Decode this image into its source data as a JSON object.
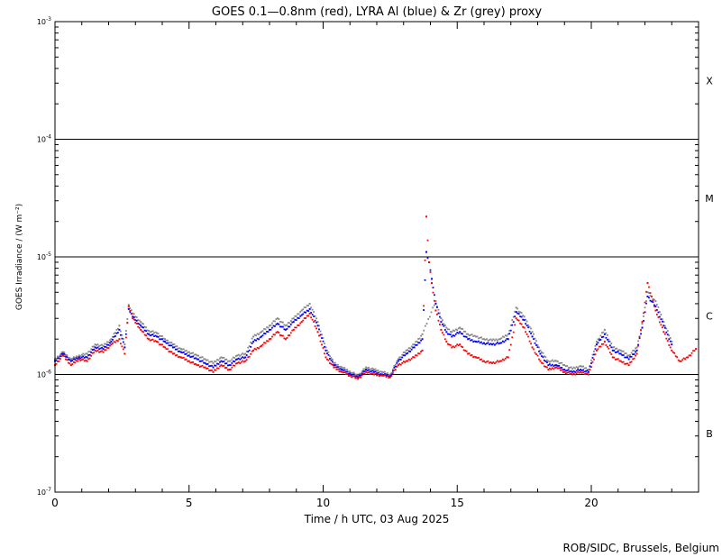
{
  "chart_data": {
    "type": "scatter",
    "title": "GOES 0.1—0.8nm (red), LYRA Al (blue) & Zr (grey) proxy",
    "xlabel": "Time / h UTC, 03 Aug 2025",
    "ylabel": "GOES Irradiance / (W m⁻²)",
    "xlim": [
      0,
      24
    ],
    "ylim": [
      1e-07,
      0.001
    ],
    "yscale": "log",
    "x_ticks": [
      {
        "value": 0,
        "label": "0"
      },
      {
        "value": 5,
        "label": "5"
      },
      {
        "value": 10,
        "label": "10"
      },
      {
        "value": 15,
        "label": "15"
      },
      {
        "value": 20,
        "label": "20"
      }
    ],
    "y_ticks": [
      {
        "exp": -7,
        "label_base": "10",
        "label_exp": "-7"
      },
      {
        "exp": -6,
        "label_base": "10",
        "label_exp": "-6"
      },
      {
        "exp": -5,
        "label_base": "10",
        "label_exp": "-5"
      },
      {
        "exp": -4,
        "label_base": "10",
        "label_exp": "-4"
      },
      {
        "exp": -3,
        "label_base": "10",
        "label_exp": "-3"
      }
    ],
    "flare_class_lines": [
      1e-06,
      1e-05,
      0.0001
    ],
    "flare_classes": [
      {
        "label": "B",
        "center_exp": -6.5
      },
      {
        "label": "C",
        "center_exp": -5.5
      },
      {
        "label": "M",
        "center_exp": -4.5
      },
      {
        "label": "X",
        "center_exp": -3.5
      }
    ],
    "series": [
      {
        "color": "#ff0000",
        "x": [
          0.0,
          0.3,
          0.6,
          0.9,
          1.2,
          1.5,
          1.8,
          2.1,
          2.4,
          2.6,
          2.75,
          2.9,
          3.2,
          3.5,
          3.8,
          4.1,
          4.4,
          4.7,
          5.0,
          5.3,
          5.6,
          5.9,
          6.2,
          6.5,
          6.8,
          7.1,
          7.4,
          7.7,
          8.0,
          8.3,
          8.6,
          8.9,
          9.2,
          9.5,
          9.8,
          10.1,
          10.4,
          10.7,
          11.0,
          11.3,
          11.6,
          11.9,
          12.2,
          12.5,
          12.8,
          13.1,
          13.4,
          13.7,
          13.85,
          13.95,
          14.05,
          14.2,
          14.4,
          14.6,
          14.8,
          15.1,
          15.4,
          15.7,
          16.0,
          16.3,
          16.6,
          16.9,
          17.2,
          17.5,
          17.8,
          18.1,
          18.4,
          18.7,
          19.0,
          19.3,
          19.6,
          19.9,
          20.2,
          20.5,
          20.8,
          21.1,
          21.4,
          21.7,
          21.9,
          22.1,
          22.4,
          22.7,
          23.0,
          23.3,
          23.6,
          23.9
        ],
        "y": [
          1.2e-06,
          1.45e-06,
          1.2e-06,
          1.35e-06,
          1.3e-06,
          1.6e-06,
          1.55e-06,
          1.8e-06,
          2e-06,
          1.5e-06,
          3.8e-06,
          3e-06,
          2.4e-06,
          2e-06,
          1.9e-06,
          1.7e-06,
          1.5e-06,
          1.4e-06,
          1.3e-06,
          1.2e-06,
          1.15e-06,
          1.05e-06,
          1.2e-06,
          1.1e-06,
          1.25e-06,
          1.3e-06,
          1.6e-06,
          1.75e-06,
          2e-06,
          2.3e-06,
          2e-06,
          2.4e-06,
          2.8e-06,
          3.3e-06,
          2.3e-06,
          1.4e-06,
          1.15e-06,
          1.05e-06,
          9.8e-07,
          9.2e-07,
          1.05e-06,
          1e-06,
          9.8e-07,
          9.5e-07,
          1.2e-06,
          1.3e-06,
          1.4e-06,
          1.6e-06,
          2.2e-05,
          9e-06,
          6e-06,
          3.5e-06,
          2.4e-06,
          1.9e-06,
          1.7e-06,
          1.8e-06,
          1.5e-06,
          1.4e-06,
          1.3e-06,
          1.25e-06,
          1.3e-06,
          1.4e-06,
          3e-06,
          2.5e-06,
          1.7e-06,
          1.3e-06,
          1.1e-06,
          1.15e-06,
          1.05e-06,
          1e-06,
          1.05e-06,
          1e-06,
          1.6e-06,
          1.9e-06,
          1.4e-06,
          1.3e-06,
          1.2e-06,
          1.5e-06,
          2.8e-06,
          6e-06,
          3.5e-06,
          2.3e-06,
          1.6e-06,
          1.3e-06,
          1.4e-06,
          1.65e-06
        ]
      },
      {
        "color": "#0000ff",
        "x": [
          0.0,
          0.3,
          0.6,
          0.9,
          1.2,
          1.5,
          1.8,
          2.1,
          2.4,
          2.6,
          2.75,
          2.9,
          3.2,
          3.5,
          3.8,
          4.1,
          4.4,
          4.7,
          5.0,
          5.3,
          5.6,
          5.9,
          6.2,
          6.5,
          6.8,
          7.1,
          7.4,
          7.7,
          8.0,
          8.3,
          8.6,
          8.9,
          9.2,
          9.5,
          9.8,
          10.1,
          10.4,
          10.7,
          11.0,
          11.3,
          11.6,
          11.9,
          12.2,
          12.5,
          12.8,
          13.1,
          13.4,
          13.7,
          13.85,
          13.95,
          14.05,
          14.2,
          14.4,
          14.6,
          14.8,
          15.1,
          15.4,
          15.7,
          16.0,
          16.3,
          16.6,
          16.9,
          17.2,
          17.5,
          17.8,
          18.1,
          18.4,
          18.7,
          19.0,
          19.3,
          19.6,
          19.9,
          20.2,
          20.5,
          20.8,
          21.1,
          21.4,
          21.7,
          21.9,
          22.1,
          22.4,
          22.7,
          23.0
        ],
        "y": [
          1.3e-06,
          1.5e-06,
          1.3e-06,
          1.4e-06,
          1.4e-06,
          1.7e-06,
          1.65e-06,
          1.9e-06,
          2.4e-06,
          1.7e-06,
          3.6e-06,
          3.1e-06,
          2.6e-06,
          2.2e-06,
          2.1e-06,
          1.9e-06,
          1.7e-06,
          1.55e-06,
          1.45e-06,
          1.35e-06,
          1.25e-06,
          1.15e-06,
          1.3e-06,
          1.2e-06,
          1.35e-06,
          1.4e-06,
          1.9e-06,
          2.1e-06,
          2.4e-06,
          2.7e-06,
          2.4e-06,
          2.8e-06,
          3.2e-06,
          3.6e-06,
          2.6e-06,
          1.6e-06,
          1.2e-06,
          1.1e-06,
          1.02e-06,
          9.5e-07,
          1.1e-06,
          1.05e-06,
          1e-06,
          9.7e-07,
          1.3e-06,
          1.5e-06,
          1.7e-06,
          2e-06,
          1.1e-05,
          9e-06,
          6.5e-06,
          4e-06,
          2.8e-06,
          2.3e-06,
          2.1e-06,
          2.3e-06,
          2e-06,
          1.9e-06,
          1.85e-06,
          1.8e-06,
          1.85e-06,
          2e-06,
          3.4e-06,
          2.9e-06,
          2.1e-06,
          1.5e-06,
          1.2e-06,
          1.2e-06,
          1.1e-06,
          1.05e-06,
          1.1e-06,
          1.05e-06,
          1.8e-06,
          2.2e-06,
          1.6e-06,
          1.5e-06,
          1.35e-06,
          1.6e-06,
          2.5e-06,
          4.6e-06,
          3.8e-06,
          2.6e-06,
          1.8e-06
        ]
      },
      {
        "color": "#888888",
        "x": [
          0.0,
          0.3,
          0.6,
          0.9,
          1.2,
          1.5,
          1.8,
          2.1,
          2.4,
          2.6,
          2.75,
          2.9,
          3.2,
          3.5,
          3.8,
          4.1,
          4.4,
          4.7,
          5.0,
          5.3,
          5.6,
          5.9,
          6.2,
          6.5,
          6.8,
          7.1,
          7.4,
          7.7,
          8.0,
          8.3,
          8.6,
          8.9,
          9.2,
          9.5,
          9.8,
          10.1,
          10.4,
          10.7,
          11.0,
          11.3,
          11.6,
          11.9,
          12.2,
          12.5,
          12.8,
          13.1,
          13.4,
          13.7,
          14.2,
          14.4,
          14.6,
          14.8,
          15.1,
          15.4,
          15.7,
          16.0,
          16.3,
          16.6,
          16.9,
          17.2,
          17.5,
          17.8,
          18.1,
          18.4,
          18.7,
          19.0,
          19.3,
          19.6,
          19.9,
          20.2,
          20.5,
          20.8,
          21.1,
          21.4,
          21.7,
          21.9,
          22.1,
          22.4,
          22.7,
          23.0
        ],
        "y": [
          1.35e-06,
          1.55e-06,
          1.35e-06,
          1.45e-06,
          1.5e-06,
          1.8e-06,
          1.75e-06,
          2e-06,
          2.6e-06,
          1.8e-06,
          3.9e-06,
          3.3e-06,
          2.8e-06,
          2.35e-06,
          2.25e-06,
          2e-06,
          1.8e-06,
          1.65e-06,
          1.55e-06,
          1.45e-06,
          1.35e-06,
          1.25e-06,
          1.4e-06,
          1.3e-06,
          1.45e-06,
          1.5e-06,
          2.1e-06,
          2.3e-06,
          2.6e-06,
          3e-06,
          2.6e-06,
          3e-06,
          3.5e-06,
          4e-06,
          2.8e-06,
          1.7e-06,
          1.25e-06,
          1.15e-06,
          1.06e-06,
          9.8e-07,
          1.15e-06,
          1.1e-06,
          1.05e-06,
          1e-06,
          1.35e-06,
          1.6e-06,
          1.8e-06,
          2.2e-06,
          4.2e-06,
          3e-06,
          2.5e-06,
          2.3e-06,
          2.5e-06,
          2.2e-06,
          2.1e-06,
          2e-06,
          1.95e-06,
          2e-06,
          2.2e-06,
          3.7e-06,
          3.1e-06,
          2.3e-06,
          1.6e-06,
          1.3e-06,
          1.3e-06,
          1.2e-06,
          1.12e-06,
          1.18e-06,
          1.1e-06,
          1.9e-06,
          2.4e-06,
          1.7e-06,
          1.6e-06,
          1.45e-06,
          1.7e-06,
          2.7e-06,
          5e-06,
          4.2e-06,
          2.8e-06,
          1.9e-06
        ]
      }
    ]
  },
  "credit": "ROB/SIDC, Brussels, Belgium"
}
